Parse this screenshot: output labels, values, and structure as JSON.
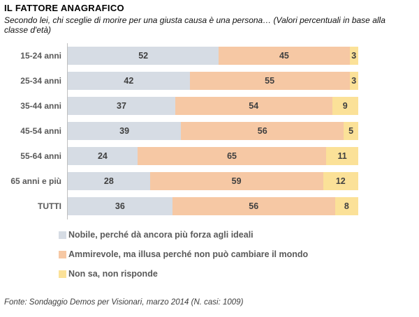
{
  "title": "IL FATTORE ANAGRAFICO",
  "subtitle": "Secondo lei, chi sceglie di morire per una giusta causa è una persona… (Valori percentuali in base alla classe d'età)",
  "footer": "Fonte: Sondaggio Demos per Visionari, marzo 2014 (N. casi: 1009)",
  "colors": {
    "segment_nobile": "#d6dce4",
    "segment_ammirevole": "#f6c8a4",
    "segment_non_sa": "#fbe198",
    "axis_line": "#bfbfbf",
    "category_label": "#595959",
    "value_label": "#404040",
    "legend_text": "#595959"
  },
  "chart_data": {
    "type": "bar",
    "orientation": "horizontal-stacked",
    "title": "IL FATTORE ANAGRAFICO",
    "subtitle": "Secondo lei, chi sceglie di morire per una giusta causa è una persona… (Valori percentuali in base alla classe d'età)",
    "categories": [
      "15-24 anni",
      "25-34 anni",
      "35-44 anni",
      "45-54 anni",
      "55-64 anni",
      "65 anni e più",
      "TUTTI"
    ],
    "series": [
      {
        "name": "Nobile, perché dà ancora più forza agli ideali",
        "color": "#d6dce4",
        "values": [
          52,
          42,
          37,
          39,
          24,
          28,
          36
        ]
      },
      {
        "name": "Ammirevole, ma illusa perché non può cambiare il mondo",
        "color": "#f6c8a4",
        "values": [
          45,
          55,
          54,
          56,
          65,
          59,
          56
        ]
      },
      {
        "name": "Non sa, non risponde",
        "color": "#fbe198",
        "values": [
          3,
          3,
          9,
          5,
          11,
          12,
          8
        ]
      }
    ],
    "xlim": [
      0,
      100
    ],
    "value_labels": true,
    "grid": false,
    "legend_position": "bottom",
    "source_note": "Fonte: Sondaggio Demos per Visionari, marzo 2014 (N. casi: 1009)"
  }
}
